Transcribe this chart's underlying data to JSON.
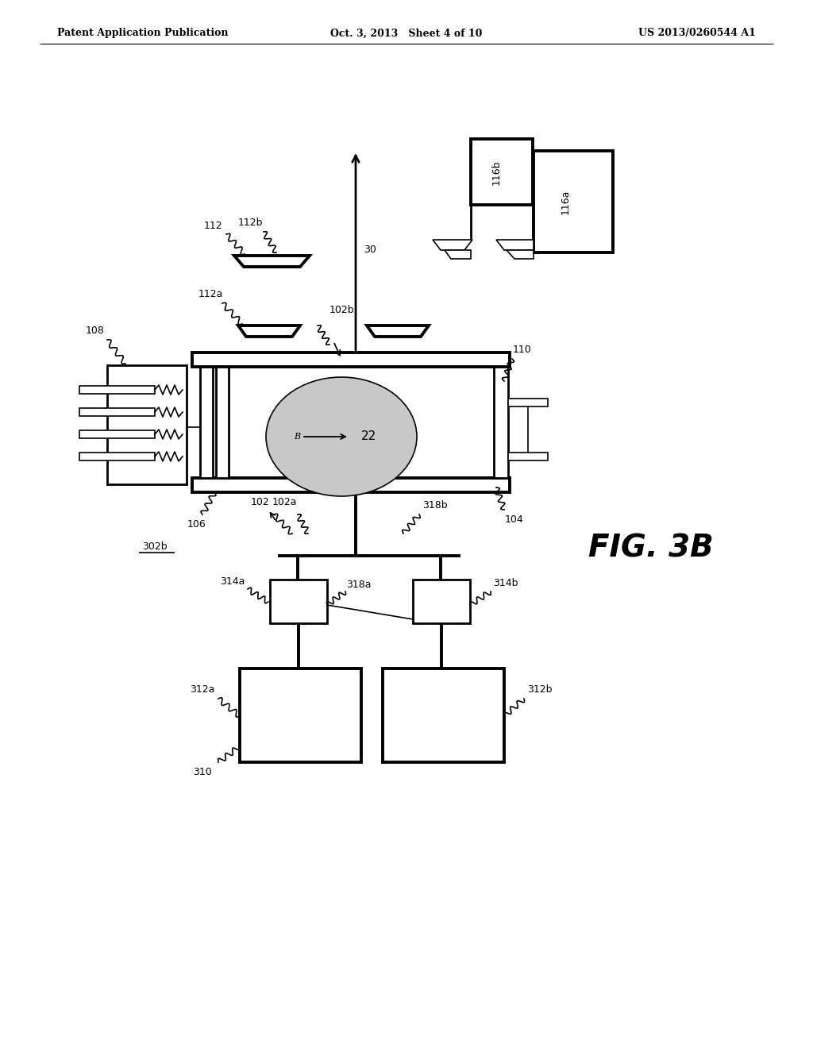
{
  "bg_color": "#ffffff",
  "header_left": "Patent Application Publication",
  "header_mid": "Oct. 3, 2013   Sheet 4 of 10",
  "header_right": "US 2013/0260544 A1",
  "fig_label": "FIG. 3B",
  "fill_gray": "#c8c8c8",
  "lw1": 1.2,
  "lw2": 2.0,
  "lw3": 2.8
}
